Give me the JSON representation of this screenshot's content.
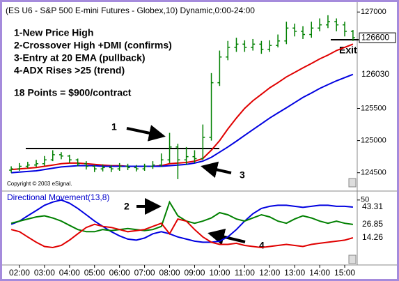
{
  "chart_data": [
    {
      "type": "ohlc",
      "title": "(ES U6 - S&P 500 E-mini Futures - Globex,10) Dynamic,0:00-24:00",
      "notes": [
        "1-New Price High",
        "2-Crossover High +DMI (confirms)",
        "3-Entry at 20 EMA (pullback)",
        "4-ADX Rises >25 (trend)",
        "18 Points = $900/contract"
      ],
      "callouts": [
        "1",
        "2",
        "3",
        "4"
      ],
      "exit_label": "Exit",
      "copyright": "Copyright © 2003 eSignal.",
      "color": "#008000",
      "x": [
        1.67,
        2,
        2.33,
        2.67,
        3,
        3.33,
        3.67,
        4,
        4.33,
        4.67,
        5,
        5.33,
        5.67,
        6,
        6.33,
        6.67,
        7,
        7.33,
        7.67,
        8,
        8.33,
        8.67,
        9,
        9.33,
        9.67,
        10,
        10.33,
        10.67,
        11,
        11.33,
        11.67,
        12,
        12.33,
        12.67,
        13,
        13.33,
        13.67,
        14,
        14.33,
        14.67,
        15,
        15.33
      ],
      "open": [
        124540,
        124560,
        124600,
        124620,
        124640,
        124700,
        124780,
        124760,
        124700,
        124640,
        124600,
        124560,
        124580,
        124560,
        124600,
        124580,
        124560,
        124600,
        124620,
        124700,
        124900,
        124700,
        124750,
        124720,
        125050,
        125900,
        126300,
        126450,
        126500,
        126450,
        126500,
        126420,
        126480,
        126550,
        126750,
        126700,
        126650,
        126750,
        126800,
        126850,
        126800,
        126700
      ],
      "high": [
        124600,
        124650,
        124670,
        124700,
        124760,
        124850,
        124820,
        124780,
        124720,
        124680,
        124620,
        124630,
        124620,
        124650,
        124640,
        124620,
        124640,
        124680,
        124800,
        125120,
        124950,
        124900,
        124850,
        125250,
        126050,
        126400,
        126550,
        126600,
        126560,
        126580,
        126550,
        126560,
        126650,
        126850,
        126820,
        126780,
        126850,
        126900,
        126950,
        126900,
        126850,
        126720
      ],
      "low": [
        124500,
        124530,
        124570,
        124590,
        124610,
        124680,
        124710,
        124650,
        124600,
        124550,
        124510,
        124520,
        124510,
        124530,
        124540,
        124520,
        124530,
        124560,
        124590,
        124650,
        124400,
        124620,
        124650,
        124700,
        125000,
        125850,
        126250,
        126380,
        126380,
        126400,
        126350,
        126380,
        126450,
        126500,
        126620,
        126580,
        126600,
        126700,
        126750,
        126700,
        126620,
        126550
      ],
      "close": [
        124560,
        124600,
        124620,
        124640,
        124700,
        124780,
        124760,
        124700,
        124640,
        124600,
        124560,
        124580,
        124560,
        124600,
        124580,
        124560,
        124600,
        124620,
        124700,
        124900,
        124700,
        124750,
        124720,
        125050,
        125900,
        126300,
        126450,
        126500,
        126450,
        126500,
        126420,
        126480,
        126550,
        126750,
        126700,
        126650,
        126750,
        126800,
        126850,
        126800,
        126700,
        126600
      ],
      "overlays": [
        {
          "color": "#e00000",
          "values": [
            124550,
            124560,
            124570,
            124580,
            124600,
            124620,
            124640,
            124650,
            124650,
            124640,
            124630,
            124620,
            124610,
            124610,
            124600,
            124600,
            124600,
            124600,
            124610,
            124640,
            124650,
            124660,
            124680,
            124720,
            124850,
            125000,
            125180,
            125350,
            125500,
            125620,
            125720,
            125820,
            125900,
            125990,
            126060,
            126130,
            126200,
            126270,
            126330,
            126400,
            126450,
            126500
          ]
        },
        {
          "color": "#0000e0",
          "values": [
            124500,
            124510,
            124520,
            124530,
            124550,
            124570,
            124590,
            124600,
            124610,
            124610,
            124610,
            124600,
            124600,
            124600,
            124600,
            124600,
            124600,
            124600,
            124600,
            124610,
            124620,
            124630,
            124650,
            124680,
            124740,
            124820,
            124900,
            124990,
            125080,
            125170,
            125260,
            125350,
            125430,
            125510,
            125590,
            125670,
            125740,
            125810,
            125870,
            125930,
            125980,
            126030
          ]
        }
      ],
      "xlim": [
        1.5,
        15.5
      ],
      "ylim": [
        124280,
        127100
      ],
      "yticks": [
        124500,
        125000,
        125500,
        127000
      ]
    },
    {
      "type": "line",
      "title": "Directional Movement(13,8)",
      "x": [
        1.67,
        2,
        2.33,
        2.67,
        3,
        3.33,
        3.67,
        4,
        4.33,
        4.67,
        5,
        5.33,
        5.67,
        6,
        6.33,
        6.67,
        7,
        7.33,
        7.67,
        8,
        8.33,
        8.67,
        9,
        9.33,
        9.67,
        10,
        10.33,
        10.67,
        11,
        11.33,
        11.67,
        12,
        12.33,
        12.67,
        13,
        13.33,
        13.67,
        14,
        14.33,
        14.67,
        15,
        15.33
      ],
      "series": [
        {
          "color": "#0000e0",
          "values": [
            27,
            30,
            35,
            40,
            45,
            48,
            50,
            47,
            42,
            36,
            30,
            25,
            20,
            16,
            13,
            12,
            14,
            18,
            20,
            18,
            15,
            13,
            11,
            10,
            10,
            11,
            15,
            22,
            30,
            37,
            42,
            44,
            45,
            45,
            44,
            43,
            44,
            45,
            45,
            44,
            44,
            43.31
          ]
        },
        {
          "color": "#008000",
          "values": [
            28,
            30,
            32,
            34,
            35,
            33,
            30,
            26,
            22,
            20,
            20,
            22,
            21,
            22,
            23,
            22,
            21,
            22,
            25,
            48,
            35,
            30,
            28,
            30,
            33,
            38,
            36,
            32,
            30,
            33,
            36,
            34,
            30,
            28,
            32,
            35,
            33,
            30,
            28,
            30,
            28,
            26.85
          ]
        },
        {
          "color": "#e00000",
          "values": [
            22,
            20,
            15,
            10,
            6,
            5,
            7,
            12,
            18,
            24,
            27,
            25,
            24,
            22,
            20,
            21,
            22,
            25,
            28,
            18,
            32,
            30,
            22,
            15,
            10,
            8,
            8,
            9,
            7,
            6,
            5,
            6,
            7,
            8,
            7,
            6,
            8,
            9,
            10,
            11,
            12,
            14.26
          ]
        }
      ],
      "xlim": [
        1.5,
        15.5
      ],
      "xticks": [
        {
          "value": 2,
          "label": "02:00"
        },
        {
          "value": 3,
          "label": "03:00"
        },
        {
          "value": 4,
          "label": "04:00"
        },
        {
          "value": 5,
          "label": "05:00"
        },
        {
          "value": 6,
          "label": "06:00"
        },
        {
          "value": 7,
          "label": "07:00"
        },
        {
          "value": 8,
          "label": "08:00"
        },
        {
          "value": 9,
          "label": "09:00"
        },
        {
          "value": 10,
          "label": "10:00"
        },
        {
          "value": 11,
          "label": "11:00"
        },
        {
          "value": 12,
          "label": "12:00"
        },
        {
          "value": 13,
          "label": "13:00"
        },
        {
          "value": 14,
          "label": "14:00"
        },
        {
          "value": 15,
          "label": "15:00"
        }
      ],
      "ylim": [
        -11.5,
        54.5
      ],
      "yticks": [
        50
      ]
    }
  ]
}
